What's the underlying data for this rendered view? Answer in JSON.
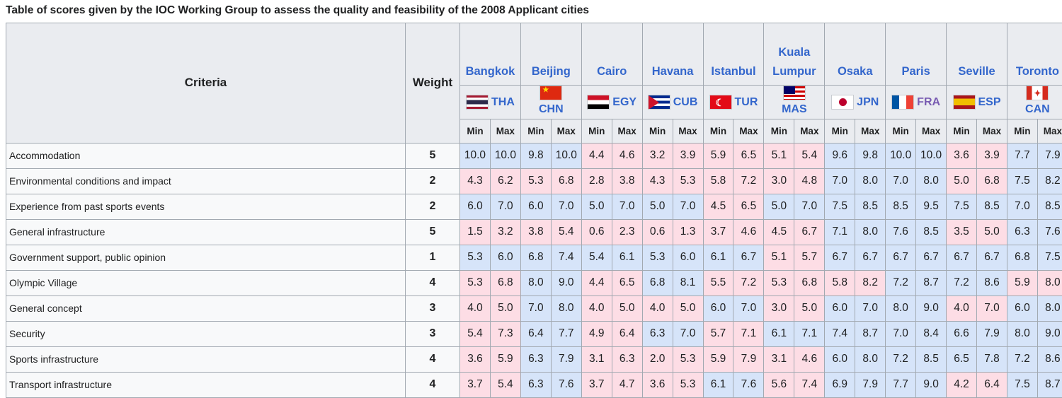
{
  "caption": "Table of scores given by the IOC Working Group to assess the quality and feasibility of the 2008 Applicant cities",
  "headers": {
    "criteria": "Criteria",
    "weight": "Weight",
    "min": "Min",
    "max": "Max"
  },
  "cities": [
    {
      "name": "Bangkok",
      "code": "THA",
      "flag": "flag-thailand-icon"
    },
    {
      "name": "Beijing",
      "code": "CHN",
      "flag": "flag-china-icon"
    },
    {
      "name": "Cairo",
      "code": "EGY",
      "flag": "flag-egypt-icon"
    },
    {
      "name": "Havana",
      "code": "CUB",
      "flag": "flag-cuba-icon"
    },
    {
      "name": "Istanbul",
      "code": "TUR",
      "flag": "flag-turkey-icon"
    },
    {
      "name": "Kuala Lumpur",
      "code": "MAS",
      "flag": "flag-malaysia-icon"
    },
    {
      "name": "Osaka",
      "code": "JPN",
      "flag": "flag-japan-icon"
    },
    {
      "name": "Paris",
      "code": "FRA",
      "flag": "flag-france-icon"
    },
    {
      "name": "Seville",
      "code": "ESP",
      "flag": "flag-spain-icon"
    },
    {
      "name": "Toronto",
      "code": "CAN",
      "flag": "flag-canada-icon"
    }
  ],
  "rows": [
    {
      "criteria": "Accommodation",
      "weight": "5",
      "scores": [
        "10.0",
        "10.0",
        "9.8",
        "10.0",
        "4.4",
        "4.6",
        "3.2",
        "3.9",
        "5.9",
        "6.5",
        "5.1",
        "5.4",
        "9.6",
        "9.8",
        "10.0",
        "10.0",
        "3.6",
        "3.9",
        "7.7",
        "7.9"
      ]
    },
    {
      "criteria": "Environmental conditions and impact",
      "weight": "2",
      "scores": [
        "4.3",
        "6.2",
        "5.3",
        "6.8",
        "2.8",
        "3.8",
        "4.3",
        "5.3",
        "5.8",
        "7.2",
        "3.0",
        "4.8",
        "7.0",
        "8.0",
        "7.0",
        "8.0",
        "5.0",
        "6.8",
        "7.5",
        "8.2"
      ]
    },
    {
      "criteria": "Experience from past sports events",
      "weight": "2",
      "scores": [
        "6.0",
        "7.0",
        "6.0",
        "7.0",
        "5.0",
        "7.0",
        "5.0",
        "7.0",
        "4.5",
        "6.5",
        "5.0",
        "7.0",
        "7.5",
        "8.5",
        "8.5",
        "9.5",
        "7.5",
        "8.5",
        "7.0",
        "8.5"
      ]
    },
    {
      "criteria": "General infrastructure",
      "weight": "5",
      "scores": [
        "1.5",
        "3.2",
        "3.8",
        "5.4",
        "0.6",
        "2.3",
        "0.6",
        "1.3",
        "3.7",
        "4.6",
        "4.5",
        "6.7",
        "7.1",
        "8.0",
        "7.6",
        "8.5",
        "3.5",
        "5.0",
        "6.3",
        "7.6"
      ]
    },
    {
      "criteria": "Government support, public opinion",
      "weight": "1",
      "scores": [
        "5.3",
        "6.0",
        "6.8",
        "7.4",
        "5.4",
        "6.1",
        "5.3",
        "6.0",
        "6.1",
        "6.7",
        "5.1",
        "5.7",
        "6.7",
        "6.7",
        "6.7",
        "6.7",
        "6.7",
        "6.7",
        "6.8",
        "7.5"
      ]
    },
    {
      "criteria": "Olympic Village",
      "weight": "4",
      "scores": [
        "5.3",
        "6.8",
        "8.0",
        "9.0",
        "4.4",
        "6.5",
        "6.8",
        "8.1",
        "5.5",
        "7.2",
        "5.3",
        "6.8",
        "5.8",
        "8.2",
        "7.2",
        "8.7",
        "7.2",
        "8.6",
        "5.9",
        "8.0"
      ]
    },
    {
      "criteria": "General concept",
      "weight": "3",
      "scores": [
        "4.0",
        "5.0",
        "7.0",
        "8.0",
        "4.0",
        "5.0",
        "4.0",
        "5.0",
        "6.0",
        "7.0",
        "3.0",
        "5.0",
        "6.0",
        "7.0",
        "8.0",
        "9.0",
        "4.0",
        "7.0",
        "6.0",
        "8.0"
      ]
    },
    {
      "criteria": "Security",
      "weight": "3",
      "scores": [
        "5.4",
        "7.3",
        "6.4",
        "7.7",
        "4.9",
        "6.4",
        "6.3",
        "7.0",
        "5.7",
        "7.1",
        "6.1",
        "7.1",
        "7.4",
        "8.7",
        "7.0",
        "8.4",
        "6.6",
        "7.9",
        "8.0",
        "9.0"
      ]
    },
    {
      "criteria": "Sports infrastructure",
      "weight": "4",
      "scores": [
        "3.6",
        "5.9",
        "6.3",
        "7.9",
        "3.1",
        "6.3",
        "2.0",
        "5.3",
        "5.9",
        "7.9",
        "3.1",
        "4.6",
        "6.0",
        "8.0",
        "7.2",
        "8.5",
        "6.5",
        "7.8",
        "7.2",
        "8.6"
      ]
    },
    {
      "criteria": "Transport infrastructure",
      "weight": "4",
      "scores": [
        "3.7",
        "5.4",
        "6.3",
        "7.6",
        "3.7",
        "4.7",
        "3.6",
        "5.3",
        "6.1",
        "7.6",
        "5.6",
        "7.4",
        "6.9",
        "7.9",
        "7.7",
        "9.0",
        "4.2",
        "6.4",
        "7.5",
        "8.7"
      ]
    }
  ],
  "cell_colors": [
    [
      "b",
      "b",
      "b",
      "b",
      "r",
      "r",
      "r",
      "r",
      "r",
      "r",
      "r",
      "r",
      "b",
      "b",
      "b",
      "b",
      "r",
      "r",
      "b",
      "b"
    ],
    [
      "r",
      "r",
      "r",
      "r",
      "r",
      "r",
      "r",
      "r",
      "r",
      "r",
      "r",
      "r",
      "b",
      "b",
      "b",
      "b",
      "r",
      "r",
      "b",
      "b"
    ],
    [
      "b",
      "b",
      "b",
      "b",
      "b",
      "b",
      "b",
      "b",
      "r",
      "r",
      "b",
      "b",
      "b",
      "b",
      "b",
      "b",
      "b",
      "b",
      "b",
      "b"
    ],
    [
      "r",
      "r",
      "r",
      "r",
      "r",
      "r",
      "r",
      "r",
      "r",
      "r",
      "r",
      "r",
      "b",
      "b",
      "b",
      "b",
      "r",
      "r",
      "b",
      "b"
    ],
    [
      "b",
      "b",
      "b",
      "b",
      "b",
      "b",
      "b",
      "b",
      "b",
      "b",
      "r",
      "r",
      "b",
      "b",
      "b",
      "b",
      "b",
      "b",
      "b",
      "b"
    ],
    [
      "r",
      "r",
      "b",
      "b",
      "r",
      "r",
      "b",
      "b",
      "r",
      "r",
      "r",
      "r",
      "r",
      "r",
      "b",
      "b",
      "b",
      "b",
      "r",
      "r"
    ],
    [
      "r",
      "r",
      "b",
      "b",
      "r",
      "r",
      "r",
      "r",
      "b",
      "b",
      "r",
      "r",
      "b",
      "b",
      "b",
      "b",
      "r",
      "r",
      "b",
      "b"
    ],
    [
      "r",
      "r",
      "b",
      "b",
      "r",
      "r",
      "b",
      "b",
      "r",
      "r",
      "b",
      "b",
      "b",
      "b",
      "b",
      "b",
      "b",
      "b",
      "b",
      "b"
    ],
    [
      "r",
      "r",
      "b",
      "b",
      "r",
      "r",
      "r",
      "r",
      "r",
      "r",
      "r",
      "r",
      "b",
      "b",
      "b",
      "b",
      "b",
      "b",
      "b",
      "b"
    ],
    [
      "r",
      "r",
      "b",
      "b",
      "r",
      "r",
      "r",
      "r",
      "b",
      "b",
      "r",
      "r",
      "b",
      "b",
      "b",
      "b",
      "r",
      "r",
      "b",
      "b"
    ]
  ]
}
